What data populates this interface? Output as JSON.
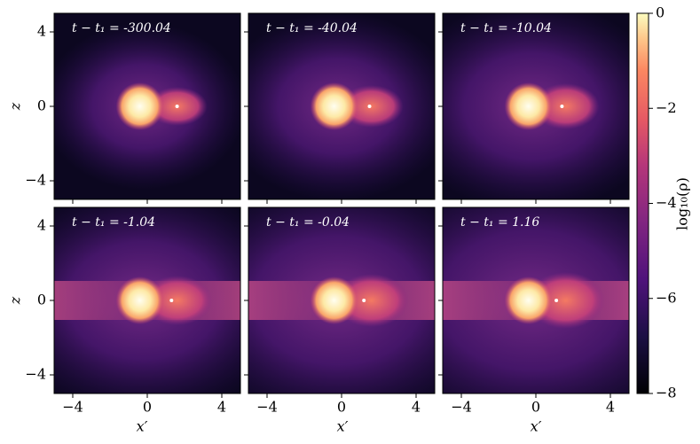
{
  "chart_data": {
    "type": "image-grid",
    "panels": [
      {
        "annotation": "t − t₁ = -300.04"
      },
      {
        "annotation": "t − t₁ = -40.04"
      },
      {
        "annotation": "t − t₁ = -10.04"
      },
      {
        "annotation": "t − t₁ = -1.04"
      },
      {
        "annotation": "t − t₁ = -0.04"
      },
      {
        "annotation": "t − t₁ = 1.16"
      }
    ],
    "xlabel": "x′",
    "ylabel": "z",
    "xlim": [
      -5,
      5
    ],
    "ylim": [
      -5,
      5
    ],
    "xticks": [
      {
        "value": -4,
        "label": "−4"
      },
      0,
      4
    ],
    "yticks": [
      {
        "value": -4,
        "label": "−4"
      },
      0,
      4
    ],
    "colorbar": {
      "label": "log₁₀(ρ)",
      "lim": [
        -8,
        0
      ],
      "ticks": [
        {
          "value": -8,
          "label": "−8"
        },
        {
          "value": -6,
          "label": "−6"
        },
        {
          "value": -4,
          "label": "−4"
        },
        {
          "value": -2,
          "label": "−2"
        },
        0
      ]
    }
  }
}
